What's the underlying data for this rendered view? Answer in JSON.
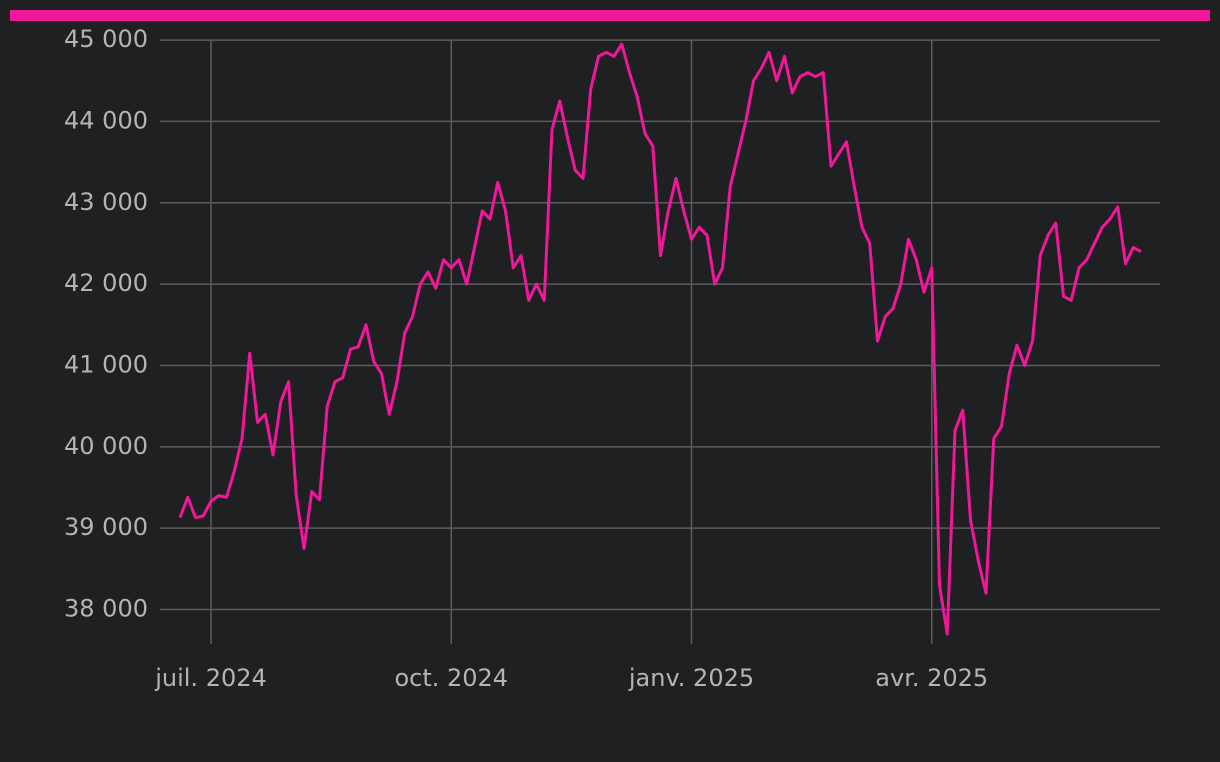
{
  "chart_data": {
    "type": "line",
    "color": "#f0179b",
    "grid": true,
    "categories": [
      null,
      null,
      null,
      null,
      "juil. 2024",
      null,
      null,
      null,
      null,
      null,
      null,
      null,
      null,
      null,
      null,
      null,
      null,
      null,
      null,
      null,
      null,
      null,
      null,
      null,
      null,
      null,
      null,
      null,
      null,
      null,
      null,
      null,
      null,
      null,
      null,
      "oct. 2024",
      null,
      null,
      null,
      null,
      null,
      null,
      null,
      null,
      null,
      null,
      null,
      null,
      null,
      null,
      null,
      null,
      null,
      null,
      null,
      null,
      null,
      null,
      null,
      null,
      null,
      null,
      null,
      null,
      null,
      null,
      "janv. 2025",
      null,
      null,
      null,
      null,
      null,
      null,
      null,
      null,
      null,
      null,
      null,
      null,
      null,
      null,
      null,
      null,
      null,
      null,
      null,
      null,
      null,
      null,
      null,
      null,
      null,
      null,
      null,
      null,
      null,
      null,
      "avr. 2025",
      null,
      null,
      null,
      null,
      null,
      null,
      null,
      null,
      null,
      null,
      null,
      null,
      null,
      null,
      null,
      null,
      null,
      null,
      null,
      null,
      null,
      null,
      null,
      null,
      null,
      null,
      null
    ],
    "values": [
      39130,
      39380,
      39130,
      39150,
      39330,
      39400,
      39380,
      39700,
      40100,
      41150,
      40300,
      40400,
      39900,
      40550,
      40800,
      39400,
      38750,
      39450,
      39350,
      40500,
      40800,
      40850,
      41200,
      41230,
      41500,
      41050,
      40900,
      40400,
      40800,
      41400,
      41600,
      42000,
      42150,
      41950,
      42300,
      42200,
      42300,
      42000,
      42450,
      42900,
      42800,
      43250,
      42900,
      42200,
      42350,
      41800,
      42000,
      41800,
      43900,
      44250,
      43800,
      43400,
      43300,
      44400,
      44800,
      44850,
      44800,
      44950,
      44600,
      44300,
      43850,
      43700,
      42350,
      42900,
      43300,
      42900,
      42550,
      42700,
      42600,
      42000,
      42200,
      43200,
      43600,
      44000,
      44500,
      44650,
      44850,
      44500,
      44800,
      44350,
      44550,
      44600,
      44550,
      44600,
      43450,
      43600,
      43750,
      43200,
      42700,
      42500,
      41300,
      41600,
      41700,
      42000,
      42550,
      42300,
      41900,
      42200,
      38300,
      37700,
      40200,
      40450,
      39100,
      38600,
      38200,
      40100,
      40250,
      40900,
      41250,
      41000,
      41300,
      42350,
      42600,
      42750,
      41850,
      41800,
      42200,
      42300,
      42500,
      42700,
      42800,
      42950,
      42250,
      42450,
      42400
    ],
    "ylim": [
      37650,
      45050
    ],
    "yticks": [
      {
        "value": 38000,
        "label": "38 000"
      },
      {
        "value": 39000,
        "label": "39 000"
      },
      {
        "value": 40000,
        "label": "40 000"
      },
      {
        "value": 41000,
        "label": "41 000"
      },
      {
        "value": 42000,
        "label": "42 000"
      },
      {
        "value": 43000,
        "label": "43 000"
      },
      {
        "value": 44000,
        "label": "44 000"
      },
      {
        "value": 45000,
        "label": "45 000"
      }
    ]
  }
}
